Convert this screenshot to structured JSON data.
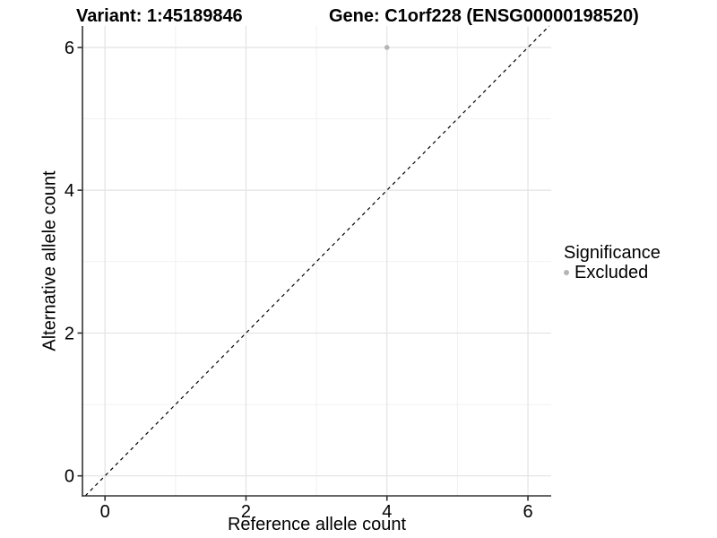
{
  "titles": {
    "variant": "Variant: 1:45189846",
    "gene": "Gene: C1orf228 (ENSG00000198520)"
  },
  "chart_data": {
    "type": "scatter",
    "title_left": "Variant: 1:45189846",
    "title_right": "Gene: C1orf228 (ENSG00000198520)",
    "xlabel": "Reference allele count",
    "ylabel": "Alternative allele count",
    "xlim": [
      -0.32,
      6.33
    ],
    "ylim": [
      -0.28,
      6.3
    ],
    "x_major_ticks": [
      0,
      2,
      4,
      6
    ],
    "y_major_ticks": [
      0,
      2,
      4,
      6
    ],
    "x_minor_ticks": [
      1,
      3,
      5
    ],
    "y_minor_ticks": [
      1,
      3,
      5
    ],
    "grid": "major+minor",
    "points": [
      {
        "x": 4,
        "y": 6,
        "series": "Excluded"
      }
    ],
    "reference_line": {
      "type": "identity",
      "slope": 1,
      "intercept": 0,
      "style": "dashed"
    },
    "legend_position": "right"
  },
  "legend": {
    "title": "Significance",
    "items": [
      {
        "label": "Excluded",
        "marker": "circle",
        "color": "#b5b5b5"
      }
    ]
  },
  "colors": {
    "background": "#ffffff",
    "point_excluded": "#b5b5b5",
    "grid_major": "#e3e3e3",
    "grid_minor": "#f1f1f1",
    "axis_line": "#333333",
    "tick_mark": "#333333",
    "tick_label": "#000000",
    "dashed_line": "#000000"
  }
}
